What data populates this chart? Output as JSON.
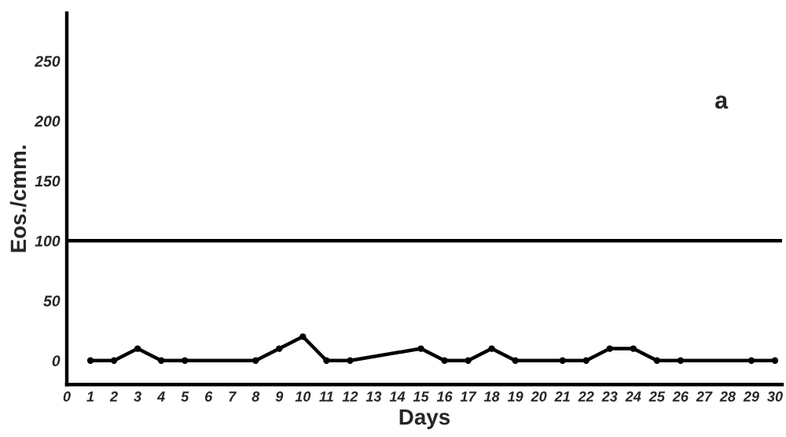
{
  "chart_data": {
    "type": "line",
    "xlabel": "Days",
    "ylabel": "Eos./cmm.",
    "annotations": [
      "a"
    ],
    "x": [
      1,
      2,
      3,
      4,
      5,
      8,
      9,
      10,
      11,
      12,
      15,
      16,
      17,
      18,
      19,
      21,
      22,
      23,
      24,
      25,
      26,
      29,
      30
    ],
    "series": [
      {
        "color": "#000000",
        "values": [
          0,
          0,
          10,
          0,
          0,
          0,
          10,
          20,
          0,
          0,
          10,
          0,
          0,
          10,
          0,
          0,
          0,
          10,
          10,
          0,
          0,
          0,
          0
        ]
      }
    ],
    "xlim": [
      0,
      30.3
    ],
    "xticks": [
      0,
      1,
      2,
      3,
      4,
      5,
      6,
      7,
      8,
      9,
      10,
      11,
      12,
      13,
      14,
      15,
      16,
      17,
      18,
      19,
      20,
      21,
      22,
      23,
      24,
      25,
      26,
      27,
      28,
      29,
      30
    ],
    "ylim": [
      -20,
      290
    ],
    "yticks": [
      0,
      50,
      100,
      150,
      200,
      250
    ],
    "ref_lines": [
      {
        "axis": "y",
        "value": 100,
        "color": "#000000"
      }
    ],
    "marker": "circle",
    "line_style": "solid",
    "grid": false,
    "legend": false
  }
}
